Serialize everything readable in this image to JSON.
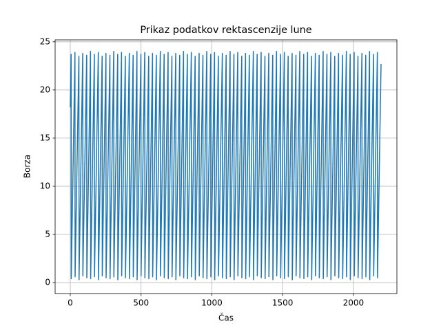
{
  "chart_data": {
    "type": "line",
    "title": "Prikaz podatkov rektascenzije lune",
    "xlabel": "Čas",
    "ylabel": "Borza",
    "x": [
      0,
      6,
      7,
      33,
      34,
      61,
      62,
      88,
      89,
      116,
      117,
      143,
      144,
      170,
      171,
      198,
      199,
      225,
      226,
      252,
      253,
      280,
      281,
      307,
      308,
      335,
      336,
      362,
      363,
      389,
      390,
      417,
      418,
      444,
      445,
      471,
      472,
      499,
      500,
      526,
      527,
      554,
      555,
      581,
      582,
      608,
      609,
      636,
      637,
      663,
      664,
      691,
      692,
      718,
      719,
      745,
      746,
      773,
      774,
      800,
      801,
      827,
      828,
      855,
      856,
      882,
      883,
      910,
      911,
      937,
      938,
      964,
      965,
      992,
      993,
      1019,
      1020,
      1046,
      1047,
      1074,
      1075,
      1101,
      1102,
      1129,
      1130,
      1156,
      1157,
      1183,
      1184,
      1211,
      1212,
      1238,
      1239,
      1265,
      1266,
      1293,
      1294,
      1320,
      1321,
      1348,
      1349,
      1375,
      1376,
      1402,
      1403,
      1430,
      1431,
      1457,
      1458,
      1485,
      1486,
      1512,
      1513,
      1539,
      1540,
      1567,
      1568,
      1594,
      1595,
      1621,
      1622,
      1649,
      1650,
      1676,
      1677,
      1704,
      1705,
      1731,
      1732,
      1758,
      1759,
      1786,
      1787,
      1813,
      1814,
      1840,
      1841,
      1868,
      1869,
      1895,
      1896,
      1923,
      1924,
      1950,
      1951,
      1977,
      1978,
      2005,
      2006,
      2032,
      2033,
      2060,
      2061,
      2087,
      2088,
      2114,
      2115,
      2142,
      2143,
      2169,
      2170,
      2195
    ],
    "values": [
      18.2,
      23.7,
      0.4,
      23.9,
      0.6,
      23.5,
      0.3,
      23.8,
      0.7,
      23.6,
      0.5,
      24.0,
      0.4,
      23.7,
      0.6,
      23.9,
      0.3,
      23.5,
      0.7,
      23.8,
      0.5,
      23.6,
      0.4,
      24.0,
      0.6,
      23.7,
      0.3,
      23.9,
      0.7,
      23.5,
      0.5,
      23.8,
      0.4,
      23.6,
      0.6,
      24.0,
      0.3,
      23.7,
      0.7,
      23.9,
      0.5,
      23.5,
      0.4,
      23.8,
      0.6,
      23.6,
      0.3,
      24.0,
      0.7,
      23.7,
      0.5,
      23.9,
      0.4,
      23.5,
      0.6,
      23.8,
      0.3,
      23.6,
      0.7,
      24.0,
      0.5,
      23.7,
      0.4,
      23.9,
      0.6,
      23.5,
      0.3,
      23.8,
      0.7,
      23.6,
      0.5,
      24.0,
      0.4,
      23.7,
      0.6,
      23.9,
      0.3,
      23.5,
      0.7,
      23.8,
      0.5,
      23.6,
      0.4,
      24.0,
      0.6,
      23.7,
      0.3,
      23.9,
      0.7,
      23.5,
      0.5,
      23.8,
      0.4,
      23.6,
      0.6,
      24.0,
      0.3,
      23.7,
      0.7,
      23.9,
      0.5,
      23.5,
      0.4,
      23.8,
      0.6,
      23.6,
      0.3,
      24.0,
      0.7,
      23.7,
      0.5,
      23.9,
      0.4,
      23.5,
      0.6,
      23.8,
      0.3,
      23.6,
      0.7,
      24.0,
      0.5,
      23.7,
      0.4,
      23.9,
      0.6,
      23.5,
      0.3,
      23.8,
      0.7,
      23.6,
      0.5,
      24.0,
      0.4,
      23.7,
      0.6,
      23.9,
      0.3,
      23.5,
      0.7,
      23.8,
      0.5,
      23.6,
      0.4,
      24.0,
      0.6,
      23.7,
      0.3,
      23.9,
      0.7,
      23.5,
      0.5,
      23.8,
      0.4,
      23.6,
      0.6,
      24.0,
      0.3,
      23.7,
      0.7,
      23.9,
      0.5,
      22.7
    ],
    "color": "#1f77b4",
    "xlim": [
      -107,
      2307
    ],
    "xticks": [
      0,
      500,
      1000,
      1500,
      2000
    ],
    "ylim": [
      -1.14,
      25.2
    ],
    "yticks": [
      0,
      5,
      10,
      15,
      20,
      25
    ],
    "grid": true
  }
}
